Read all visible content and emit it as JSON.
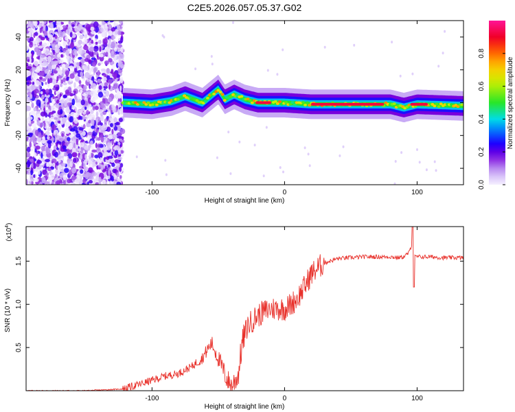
{
  "title": "C2E5.2026.057.05.37.G02",
  "chart_data": [
    {
      "type": "heatmap",
      "title": "C2E5.2026.057.05.37.G02",
      "xlabel": "Height of straight line (km)",
      "ylabel": "Frequency (Hz)",
      "xlim": [
        -195,
        135
      ],
      "ylim": [
        -50,
        50
      ],
      "x_ticks": [
        -100,
        0,
        100
      ],
      "y_ticks": [
        -40,
        -20,
        0,
        20,
        40
      ],
      "colorbar": {
        "label": "Normalized spectral amplitude",
        "ticks": [
          "0.0",
          "0.2",
          "0.4",
          "0.6",
          "0.8"
        ],
        "range": [
          0,
          1
        ]
      },
      "noise_region": {
        "x_start": -195,
        "x_end": -122
      },
      "ridge": [
        {
          "x": -122,
          "f": 0
        },
        {
          "x": -100,
          "f": -1
        },
        {
          "x": -85,
          "f": 1
        },
        {
          "x": -75,
          "f": 4
        },
        {
          "x": -62,
          "f": 0
        },
        {
          "x": -50,
          "f": 8
        },
        {
          "x": -45,
          "f": 2
        },
        {
          "x": -38,
          "f": 5
        },
        {
          "x": -30,
          "f": 2
        },
        {
          "x": -20,
          "f": 0
        },
        {
          "x": 0,
          "f": 0
        },
        {
          "x": 20,
          "f": -1
        },
        {
          "x": 60,
          "f": -1
        },
        {
          "x": 80,
          "f": -1
        },
        {
          "x": 90,
          "f": -3
        },
        {
          "x": 100,
          "f": -1
        },
        {
          "x": 135,
          "f": -2
        }
      ],
      "strong_segments": [
        {
          "x_start": -22,
          "x_end": -10,
          "f": 0
        },
        {
          "x_start": 20,
          "x_end": 75,
          "f": -1
        },
        {
          "x_start": 95,
          "x_end": 108,
          "f": -1
        }
      ]
    },
    {
      "type": "line",
      "xlabel": "Height of straight line (km)",
      "ylabel": "SNR (10 * v/v)",
      "y_multiplier": "(x10",
      "y_multiplier_exp": "4",
      "y_multiplier_close": ")",
      "xlim": [
        -195,
        135
      ],
      "ylim": [
        0,
        1.9
      ],
      "x_ticks": [
        -100,
        0,
        100
      ],
      "y_ticks": [
        "0.5",
        "1.0",
        "1.5"
      ],
      "y_tick_values": [
        0.5,
        1.0,
        1.5
      ],
      "series": [
        {
          "name": "SNR",
          "color": "#e8302a",
          "x": [
            -195,
            -150,
            -122,
            -110,
            -100,
            -90,
            -80,
            -70,
            -62,
            -58,
            -55,
            -52,
            -48,
            -44,
            -40,
            -35,
            -32,
            -28,
            -22,
            -15,
            -10,
            -5,
            0,
            5,
            10,
            15,
            20,
            25,
            30,
            40,
            50,
            60,
            70,
            80,
            85,
            90,
            94,
            96,
            98,
            100,
            110,
            120,
            135
          ],
          "values": [
            0.0,
            0.0,
            0.02,
            0.07,
            0.12,
            0.17,
            0.2,
            0.28,
            0.38,
            0.48,
            0.55,
            0.45,
            0.3,
            0.15,
            0.05,
            0.18,
            0.55,
            0.75,
            0.85,
            0.92,
            0.95,
            0.95,
            0.95,
            1.0,
            1.08,
            1.2,
            1.35,
            1.42,
            1.48,
            1.53,
            1.54,
            1.55,
            1.55,
            1.55,
            1.54,
            1.55,
            1.6,
            1.7,
            1.55,
            1.55,
            1.55,
            1.54,
            1.54
          ]
        }
      ],
      "annotations": [
        {
          "x": 96.5,
          "value": 1.9,
          "note": "spike"
        },
        {
          "x": 97.5,
          "value": 1.2,
          "note": "dip"
        }
      ]
    }
  ]
}
